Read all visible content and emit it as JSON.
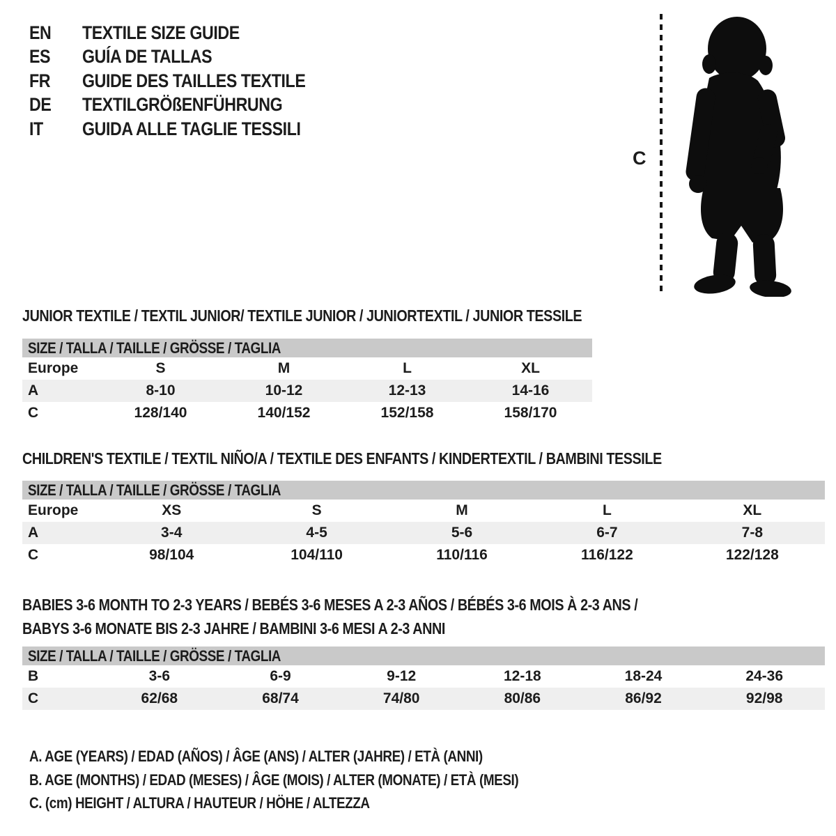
{
  "colors": {
    "background": "#ffffff",
    "text": "#1c1c1c",
    "header_bar_bg": "#c9c9c9",
    "shaded_row_bg": "#efefef",
    "silhouette": "#0d0d0d"
  },
  "language_guide": {
    "items": [
      {
        "code": "EN",
        "title": "TEXTILE SIZE GUIDE"
      },
      {
        "code": "ES",
        "title": "GUÍA DE TALLAS"
      },
      {
        "code": "FR",
        "title": "GUIDE DES TAILLES TEXTILE"
      },
      {
        "code": "DE",
        "title": "TEXTILGRÖßENFÜHRUNG"
      },
      {
        "code": "IT",
        "title": "GUIDA ALLE TAGLIE TESSILI"
      }
    ]
  },
  "figure": {
    "measure_label": "C",
    "silhouette": "toddler-standing"
  },
  "tables": [
    {
      "title_lines": [
        "JUNIOR TEXTILE / TEXTIL JUNIOR/ TEXTILE JUNIOR / JUNIORTEXTIL / JUNIOR TESSILE"
      ],
      "size_header": "SIZE / TALLA / TAILLE / GRÖSSE / TAGLIA",
      "rows": [
        {
          "label": "Europe",
          "shaded": false,
          "cells": [
            "S",
            "M",
            "L",
            "XL"
          ]
        },
        {
          "label": "A",
          "shaded": true,
          "cells": [
            "8-10",
            "10-12",
            "12-13",
            "14-16"
          ]
        },
        {
          "label": "C",
          "shaded": false,
          "cells": [
            "128/140",
            "140/152",
            "152/158",
            "158/170"
          ]
        }
      ]
    },
    {
      "title_lines": [
        "CHILDREN'S TEXTILE / TEXTIL NIÑO/A / TEXTILE DES ENFANTS / KINDERTEXTIL / BAMBINI TESSILE"
      ],
      "size_header": "SIZE / TALLA / TAILLE / GRÖSSE / TAGLIA",
      "rows": [
        {
          "label": "Europe",
          "shaded": false,
          "cells": [
            "XS",
            "S",
            "M",
            "L",
            "XL"
          ]
        },
        {
          "label": "A",
          "shaded": true,
          "cells": [
            "3-4",
            "4-5",
            "5-6",
            "6-7",
            "7-8"
          ]
        },
        {
          "label": "C",
          "shaded": false,
          "cells": [
            "98/104",
            "104/110",
            "110/116",
            "116/122",
            "122/128"
          ]
        }
      ]
    },
    {
      "title_lines": [
        "BABIES 3-6 MONTH TO 2-3 YEARS / BEBÉS 3-6 MESES A 2-3 AÑOS / BÉBÉS 3-6 MOIS À 2-3 ANS /",
        "BABYS 3-6 MONATE BIS 2-3 JAHRE / BAMBINI 3-6 MESI A 2-3 ANNI"
      ],
      "size_header": "SIZE / TALLA / TAILLE / GRÖSSE / TAGLIA",
      "rows": [
        {
          "label": "B",
          "shaded": false,
          "cells": [
            "3-6",
            "6-9",
            "9-12",
            "12-18",
            "18-24",
            "24-36"
          ]
        },
        {
          "label": "C",
          "shaded": true,
          "cells": [
            "62/68",
            "68/74",
            "74/80",
            "80/86",
            "86/92",
            "92/98"
          ]
        }
      ]
    }
  ],
  "legend": {
    "lines": [
      "A. AGE (YEARS) / EDAD (AÑOS) / ÂGE (ANS) / ALTER (JAHRE) / ETÀ (ANNI)",
      "B. AGE (MONTHS) / EDAD (MESES) / ÂGE (MOIS) / ALTER (MONATE) / ETÀ (MESI)",
      "C. (cm) HEIGHT / ALTURA / HAUTEUR / HÖHE / ALTEZZA"
    ]
  }
}
